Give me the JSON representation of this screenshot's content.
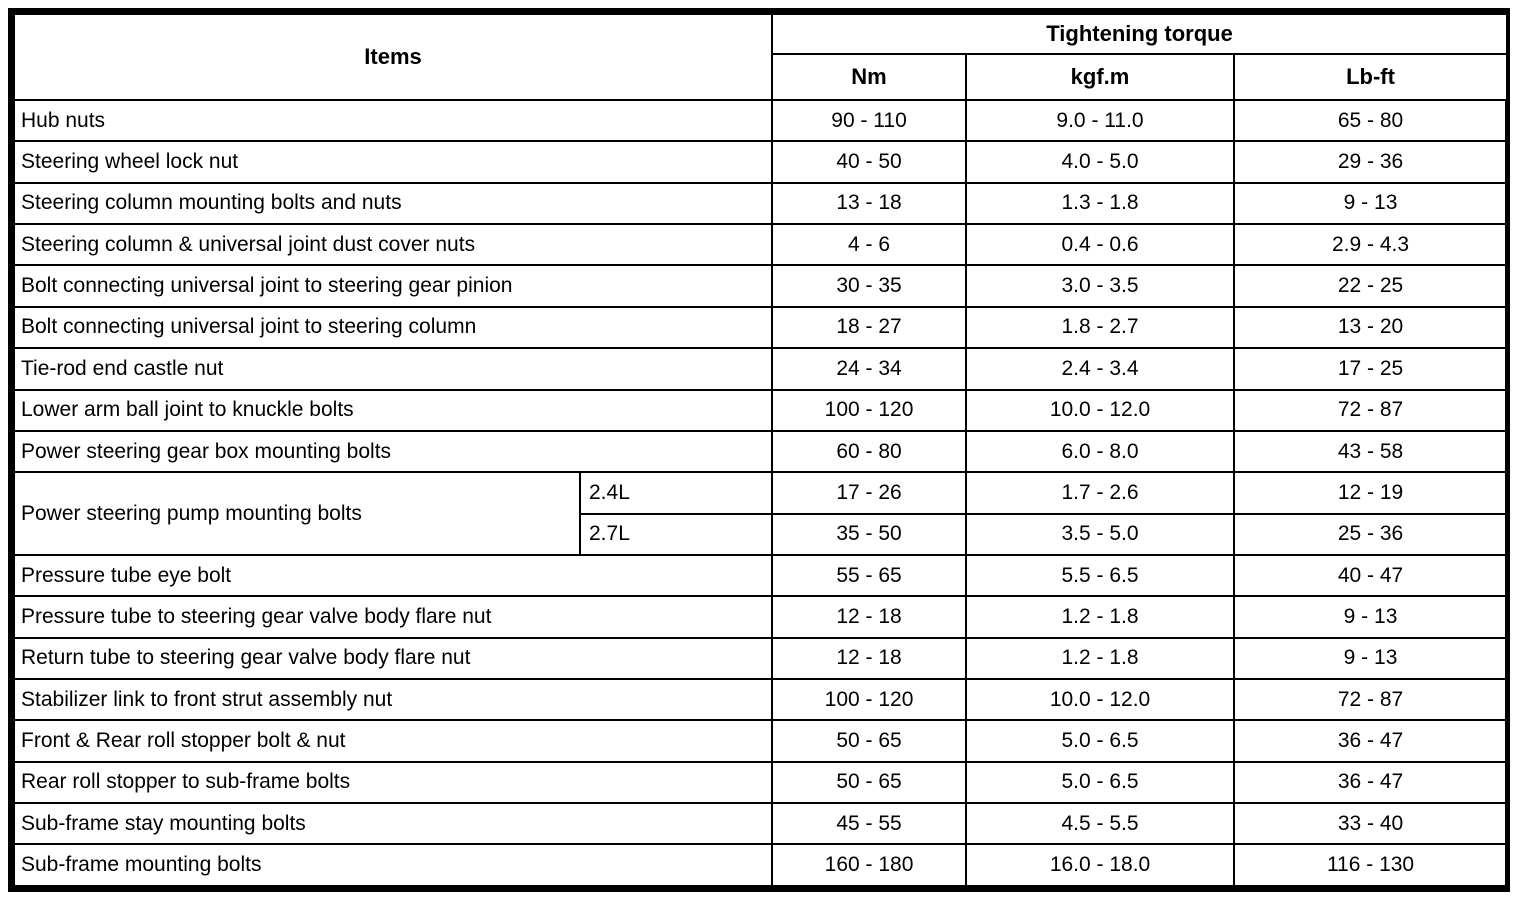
{
  "table": {
    "items_header": "Items",
    "torque_header": "Tightening torque",
    "unit_headers": [
      "Nm",
      "kgf.m",
      "Lb-ft"
    ],
    "rows": [
      {
        "item": "Hub nuts",
        "values": [
          "90 - 110",
          "9.0 - 11.0",
          "65 - 80"
        ]
      },
      {
        "item": "Steering wheel lock nut",
        "values": [
          "40 - 50",
          "4.0 - 5.0",
          "29 - 36"
        ]
      },
      {
        "item": "Steering column mounting bolts and nuts",
        "values": [
          "13 - 18",
          "1.3 - 1.8",
          "9 - 13"
        ]
      },
      {
        "item": "Steering column & universal joint dust cover nuts",
        "values": [
          "4 - 6",
          "0.4 - 0.6",
          "2.9 - 4.3"
        ]
      },
      {
        "item": "Bolt connecting universal joint to steering gear pinion",
        "values": [
          "30 - 35",
          "3.0 - 3.5",
          "22 - 25"
        ]
      },
      {
        "item": "Bolt connecting universal joint to steering column",
        "values": [
          "18 - 27",
          "1.8 - 2.7",
          "13 - 20"
        ]
      },
      {
        "item": "Tie-rod end castle nut",
        "values": [
          "24 - 34",
          "2.4 - 3.4",
          "17 - 25"
        ]
      },
      {
        "item": "Lower arm ball joint to knuckle bolts",
        "values": [
          "100 - 120",
          "10.0 - 12.0",
          "72 - 87"
        ]
      },
      {
        "item": "Power steering gear box mounting bolts",
        "values": [
          "60 - 80",
          "6.0 - 8.0",
          "43 - 58"
        ]
      },
      {
        "item": "Power steering pump mounting bolts",
        "variants": [
          {
            "label": "2.4L",
            "values": [
              "17 - 26",
              "1.7 - 2.6",
              "12 - 19"
            ]
          },
          {
            "label": "2.7L",
            "values": [
              "35 - 50",
              "3.5 - 5.0",
              "25 - 36"
            ]
          }
        ]
      },
      {
        "item": "Pressure tube eye bolt",
        "values": [
          "55 - 65",
          "5.5 - 6.5",
          "40 - 47"
        ]
      },
      {
        "item": "Pressure tube to steering gear valve body flare nut",
        "values": [
          "12 - 18",
          "1.2 - 1.8",
          "9 - 13"
        ]
      },
      {
        "item": "Return tube to steering gear valve body flare nut",
        "values": [
          "12 - 18",
          "1.2 - 1.8",
          "9 - 13"
        ]
      },
      {
        "item": "Stabilizer link to front strut assembly nut",
        "values": [
          "100 - 120",
          "10.0 - 12.0",
          "72 - 87"
        ]
      },
      {
        "item": "Front & Rear roll stopper bolt & nut",
        "values": [
          "50 - 65",
          "5.0 - 6.5",
          "36 - 47"
        ]
      },
      {
        "item": "Rear roll stopper to sub-frame bolts",
        "values": [
          "50 - 65",
          "5.0 - 6.5",
          "36 - 47"
        ]
      },
      {
        "item": "Sub-frame stay mounting bolts",
        "values": [
          "45 - 55",
          "4.5 - 5.5",
          "33 - 40"
        ]
      },
      {
        "item": "Sub-frame mounting bolts",
        "values": [
          "160 - 180",
          "16.0 - 18.0",
          "116 - 130"
        ]
      }
    ]
  }
}
